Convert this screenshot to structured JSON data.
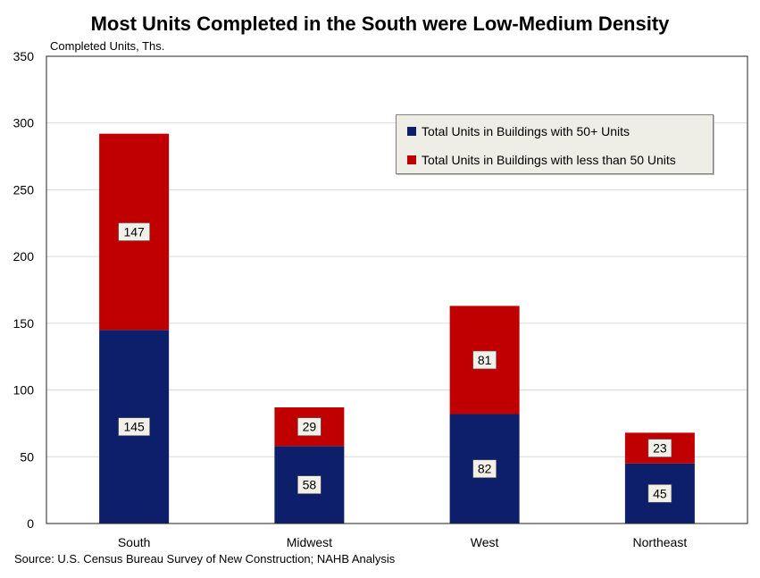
{
  "title": "Most Units Completed in the South were Low-Medium Density",
  "unit_label": "Completed Units, Ths.",
  "source": "Source: U.S. Census Bureau Survey of New Construction; NAHB Analysis",
  "colors": {
    "bottom_series": "#0d1f6a",
    "top_series": "#c00000",
    "label_bg": "#f1f1ea"
  },
  "chart_data": {
    "type": "bar",
    "stacked": true,
    "categories": [
      "South",
      "Midwest",
      "West",
      "Northeast"
    ],
    "series": [
      {
        "name": "Total Units in Buildings with 50+ Units",
        "values": [
          145,
          58,
          82,
          45
        ]
      },
      {
        "name": "Total Units in Buildings with less than 50 Units",
        "values": [
          147,
          29,
          81,
          23
        ]
      }
    ],
    "yticks": [
      0,
      50,
      100,
      150,
      200,
      250,
      300,
      350
    ],
    "ylim": [
      0,
      350
    ],
    "grid": true,
    "legend_position": "top-right"
  }
}
